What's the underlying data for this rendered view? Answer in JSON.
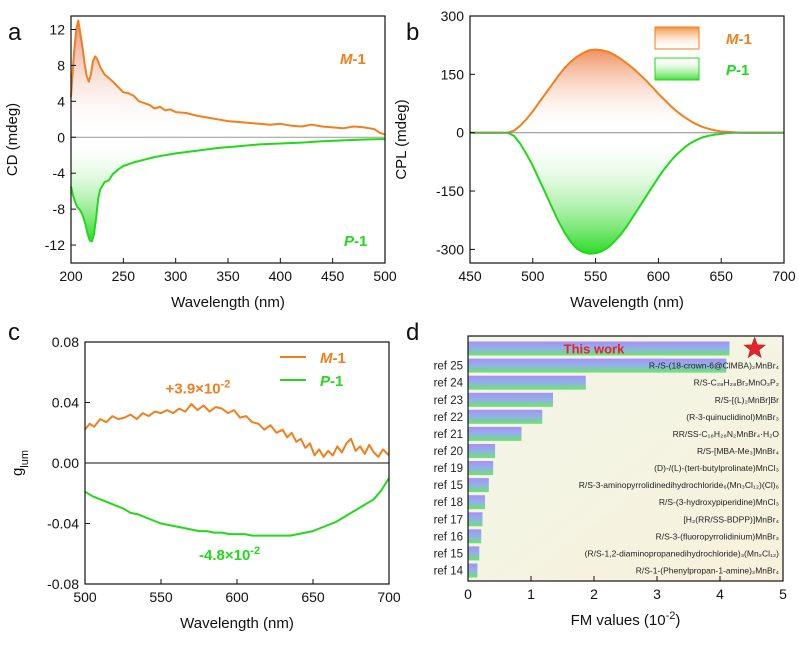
{
  "colors": {
    "orange": "#f07f1c",
    "green": "#22d81a",
    "red": "#e3242b",
    "bar_top": "#a98ff6",
    "bar_bottom": "#6fe36a"
  },
  "chart_data": [
    {
      "panel": "a",
      "type": "line",
      "xlabel": "Wavelength (nm)",
      "ylabel": "CD (mdeg)",
      "xlim": [
        200,
        500
      ],
      "ylim": [
        -14,
        13.5
      ],
      "xticks": [
        200,
        250,
        300,
        350,
        400,
        450,
        500
      ],
      "yticks": [
        -12,
        -8,
        -4,
        0,
        4,
        8,
        12
      ],
      "series": [
        {
          "name": "M-1",
          "color": "#f07f1c",
          "fill": true,
          "x": [
            200,
            203,
            205,
            207,
            209,
            211,
            213,
            215,
            217,
            219,
            221,
            223,
            225,
            228,
            232,
            236,
            240,
            245,
            250,
            255,
            260,
            265,
            270,
            275,
            280,
            285,
            290,
            295,
            300,
            310,
            320,
            330,
            340,
            350,
            360,
            370,
            380,
            390,
            400,
            410,
            420,
            430,
            440,
            450,
            460,
            470,
            480,
            490,
            495,
            500
          ],
          "y": [
            4.5,
            9.5,
            12.0,
            13.0,
            11.5,
            10.0,
            8.2,
            6.8,
            6.2,
            7.0,
            8.5,
            9.0,
            8.7,
            7.8,
            7.0,
            6.6,
            6.2,
            5.6,
            5.0,
            4.9,
            4.6,
            4.0,
            3.8,
            3.6,
            3.2,
            3.4,
            3.0,
            3.1,
            2.8,
            2.7,
            2.4,
            2.2,
            2.0,
            1.8,
            1.7,
            1.6,
            1.5,
            1.4,
            1.5,
            1.3,
            1.2,
            1.4,
            1.2,
            1.1,
            1.0,
            1.2,
            1.1,
            0.9,
            0.5,
            0.3
          ]
        },
        {
          "name": "P-1",
          "color": "#22d81a",
          "fill": true,
          "x": [
            200,
            202,
            204,
            206,
            208,
            210,
            212,
            214,
            216,
            218,
            220,
            222,
            224,
            226,
            228,
            232,
            236,
            240,
            245,
            250,
            260,
            270,
            280,
            290,
            300,
            320,
            340,
            360,
            380,
            400,
            420,
            440,
            460,
            480,
            500
          ],
          "y": [
            -5.5,
            -6.5,
            -7.2,
            -7.8,
            -8.0,
            -8.4,
            -9.0,
            -9.8,
            -10.8,
            -11.5,
            -11.6,
            -10.8,
            -9.0,
            -6.8,
            -5.8,
            -5.0,
            -4.8,
            -4.1,
            -3.6,
            -3.2,
            -2.8,
            -2.5,
            -2.2,
            -2.0,
            -1.8,
            -1.5,
            -1.2,
            -1.0,
            -0.8,
            -0.7,
            -0.6,
            -0.45,
            -0.35,
            -0.25,
            -0.2
          ]
        }
      ]
    },
    {
      "panel": "b",
      "type": "line",
      "xlabel": "Wavelength (nm)",
      "ylabel": "CPL (mdeg)",
      "xlim": [
        450,
        700
      ],
      "ylim": [
        -335,
        300
      ],
      "xticks": [
        450,
        500,
        550,
        600,
        650,
        700
      ],
      "yticks": [
        -300,
        -150,
        0,
        150,
        300
      ],
      "series": [
        {
          "name": "M-1",
          "color": "#f07f1c",
          "fill": true,
          "x": [
            450,
            460,
            470,
            475,
            480,
            485,
            490,
            495,
            500,
            505,
            510,
            515,
            520,
            525,
            530,
            535,
            540,
            545,
            550,
            555,
            560,
            565,
            570,
            575,
            580,
            585,
            590,
            595,
            600,
            605,
            610,
            615,
            620,
            625,
            630,
            635,
            640,
            645,
            650,
            655,
            660,
            665,
            670,
            680,
            690,
            700
          ],
          "y": [
            0,
            0,
            0,
            0,
            0,
            5,
            18,
            35,
            55,
            78,
            100,
            122,
            145,
            165,
            182,
            195,
            205,
            212,
            214,
            212,
            208,
            200,
            190,
            178,
            165,
            150,
            135,
            118,
            100,
            84,
            68,
            54,
            42,
            31,
            22,
            15,
            10,
            6,
            3,
            2,
            1,
            0,
            0,
            0,
            0,
            0
          ]
        },
        {
          "name": "P-1",
          "color": "#22d81a",
          "fill": true,
          "x": [
            450,
            460,
            470,
            475,
            480,
            485,
            490,
            495,
            500,
            505,
            510,
            515,
            520,
            525,
            530,
            535,
            540,
            545,
            550,
            555,
            560,
            565,
            570,
            575,
            580,
            585,
            590,
            595,
            600,
            605,
            610,
            615,
            620,
            625,
            630,
            635,
            640,
            645,
            650,
            655,
            660,
            665,
            670,
            680,
            690,
            700
          ],
          "y": [
            0,
            0,
            0,
            0,
            0,
            -8,
            -28,
            -55,
            -85,
            -120,
            -155,
            -190,
            -225,
            -255,
            -280,
            -298,
            -307,
            -311,
            -310,
            -305,
            -295,
            -280,
            -262,
            -240,
            -215,
            -190,
            -165,
            -140,
            -115,
            -92,
            -72,
            -55,
            -40,
            -28,
            -19,
            -12,
            -8,
            -5,
            -3,
            -1,
            0,
            0,
            0,
            0,
            0,
            0
          ]
        }
      ]
    },
    {
      "panel": "c",
      "type": "line",
      "xlabel": "Wavelength (nm)",
      "ylabel": "g",
      "ylabel_sub": "lum",
      "xlim": [
        500,
        700
      ],
      "ylim": [
        -0.08,
        0.08
      ],
      "xticks": [
        500,
        550,
        600,
        650,
        700
      ],
      "yticks": [
        "-0.08",
        "-0.04",
        "0.00",
        "0.04",
        "0.08"
      ],
      "annotations": [
        {
          "text_main": "+3.9×10",
          "text_exp": "-2",
          "color": "#f07f1c",
          "x": 553,
          "y": 0.046
        },
        {
          "text_main": "-4.8×10",
          "text_exp": "-2",
          "color": "#22d81a",
          "x": 575,
          "y": -0.064
        }
      ],
      "series": [
        {
          "name": "M-1",
          "color": "#f07f1c",
          "fill": false,
          "x": [
            500,
            503,
            506,
            510,
            514,
            518,
            522,
            526,
            530,
            534,
            538,
            542,
            546,
            550,
            554,
            558,
            562,
            566,
            570,
            574,
            578,
            582,
            586,
            590,
            594,
            598,
            602,
            606,
            610,
            614,
            618,
            622,
            626,
            630,
            633,
            636,
            639,
            642,
            645,
            648,
            651,
            654,
            657,
            660,
            663,
            666,
            669,
            672,
            675,
            678,
            681,
            684,
            687,
            690,
            693,
            696,
            700
          ],
          "y": [
            0.022,
            0.026,
            0.024,
            0.029,
            0.027,
            0.031,
            0.029,
            0.03,
            0.032,
            0.029,
            0.033,
            0.031,
            0.034,
            0.033,
            0.035,
            0.033,
            0.036,
            0.034,
            0.039,
            0.035,
            0.038,
            0.034,
            0.037,
            0.036,
            0.033,
            0.035,
            0.03,
            0.031,
            0.027,
            0.026,
            0.022,
            0.025,
            0.02,
            0.022,
            0.017,
            0.02,
            0.014,
            0.016,
            0.01,
            0.013,
            0.005,
            0.009,
            0.004,
            0.008,
            0.005,
            0.011,
            0.007,
            0.013,
            0.016,
            0.008,
            0.011,
            0.006,
            0.012,
            0.007,
            0.004,
            0.009,
            0.005
          ]
        },
        {
          "name": "P-1",
          "color": "#22d81a",
          "fill": false,
          "x": [
            500,
            505,
            510,
            515,
            520,
            525,
            530,
            535,
            540,
            545,
            550,
            555,
            560,
            565,
            570,
            575,
            580,
            585,
            590,
            595,
            600,
            605,
            610,
            615,
            620,
            625,
            630,
            635,
            640,
            645,
            650,
            655,
            660,
            665,
            670,
            675,
            680,
            685,
            690,
            695,
            700
          ],
          "y": [
            -0.019,
            -0.022,
            -0.024,
            -0.026,
            -0.028,
            -0.03,
            -0.033,
            -0.034,
            -0.036,
            -0.038,
            -0.04,
            -0.041,
            -0.042,
            -0.043,
            -0.044,
            -0.045,
            -0.045,
            -0.046,
            -0.046,
            -0.047,
            -0.047,
            -0.047,
            -0.048,
            -0.048,
            -0.048,
            -0.048,
            -0.048,
            -0.048,
            -0.047,
            -0.046,
            -0.045,
            -0.043,
            -0.041,
            -0.039,
            -0.036,
            -0.033,
            -0.03,
            -0.027,
            -0.024,
            -0.018,
            -0.01
          ]
        }
      ]
    },
    {
      "panel": "d",
      "type": "bar",
      "orientation": "horizontal",
      "xlabel": "FM values (10",
      "xlabel_exp": "-2",
      "xlabel_tail": ")",
      "xlim": [
        0,
        5
      ],
      "xticks": [
        0,
        1,
        2,
        3,
        4,
        5
      ],
      "this_work_label": "This work",
      "categories": [
        "",
        "ref 25",
        "ref 24",
        "ref 23",
        "ref 22",
        "ref 21",
        "ref 20",
        "ref 19",
        "ref 15",
        "ref 18",
        "ref 17",
        "ref 16",
        "ref 15",
        "ref 14"
      ],
      "values": [
        4.15,
        4.1,
        1.87,
        1.35,
        1.18,
        0.85,
        0.43,
        0.4,
        0.33,
        0.27,
        0.23,
        0.21,
        0.18,
        0.15
      ],
      "compounds": [
        "",
        "R-/S-(18-crown-6@ClMBA)₂MnBr₄",
        "R/S-C₂₈H₂₈Br₂MnO₂P₂",
        "R/S-[(L)₂MnBr]Br",
        "(R-3-quinuclidinol)MnBr₃",
        "RR/SS-C₁₈H₂₈N₂MnBr₄·H₂O",
        "R/S-[MBA-Me₃]MnBr₄",
        "(D)-/(L)-(tert-butylprolinate)MnCl₃",
        "R/S-3-aminopyrrolidinedihydrochloride₆(Mn₃Cl₁₂)(Cl)₆",
        "R/S-(3-hydroxypiperidine)MnCl₃",
        "[H₂(RR/SS-BDPP)]MnBr₄",
        "R/S-3-(fluoropyrrolidinium)MnBr₃",
        "(R/S-1,2-diaminopropanedihydrochloride)₃(Mn₂Cl₁₂)",
        "R/S-1-(Phenylpropan-1-amine)₂MnBr₄"
      ]
    }
  ]
}
